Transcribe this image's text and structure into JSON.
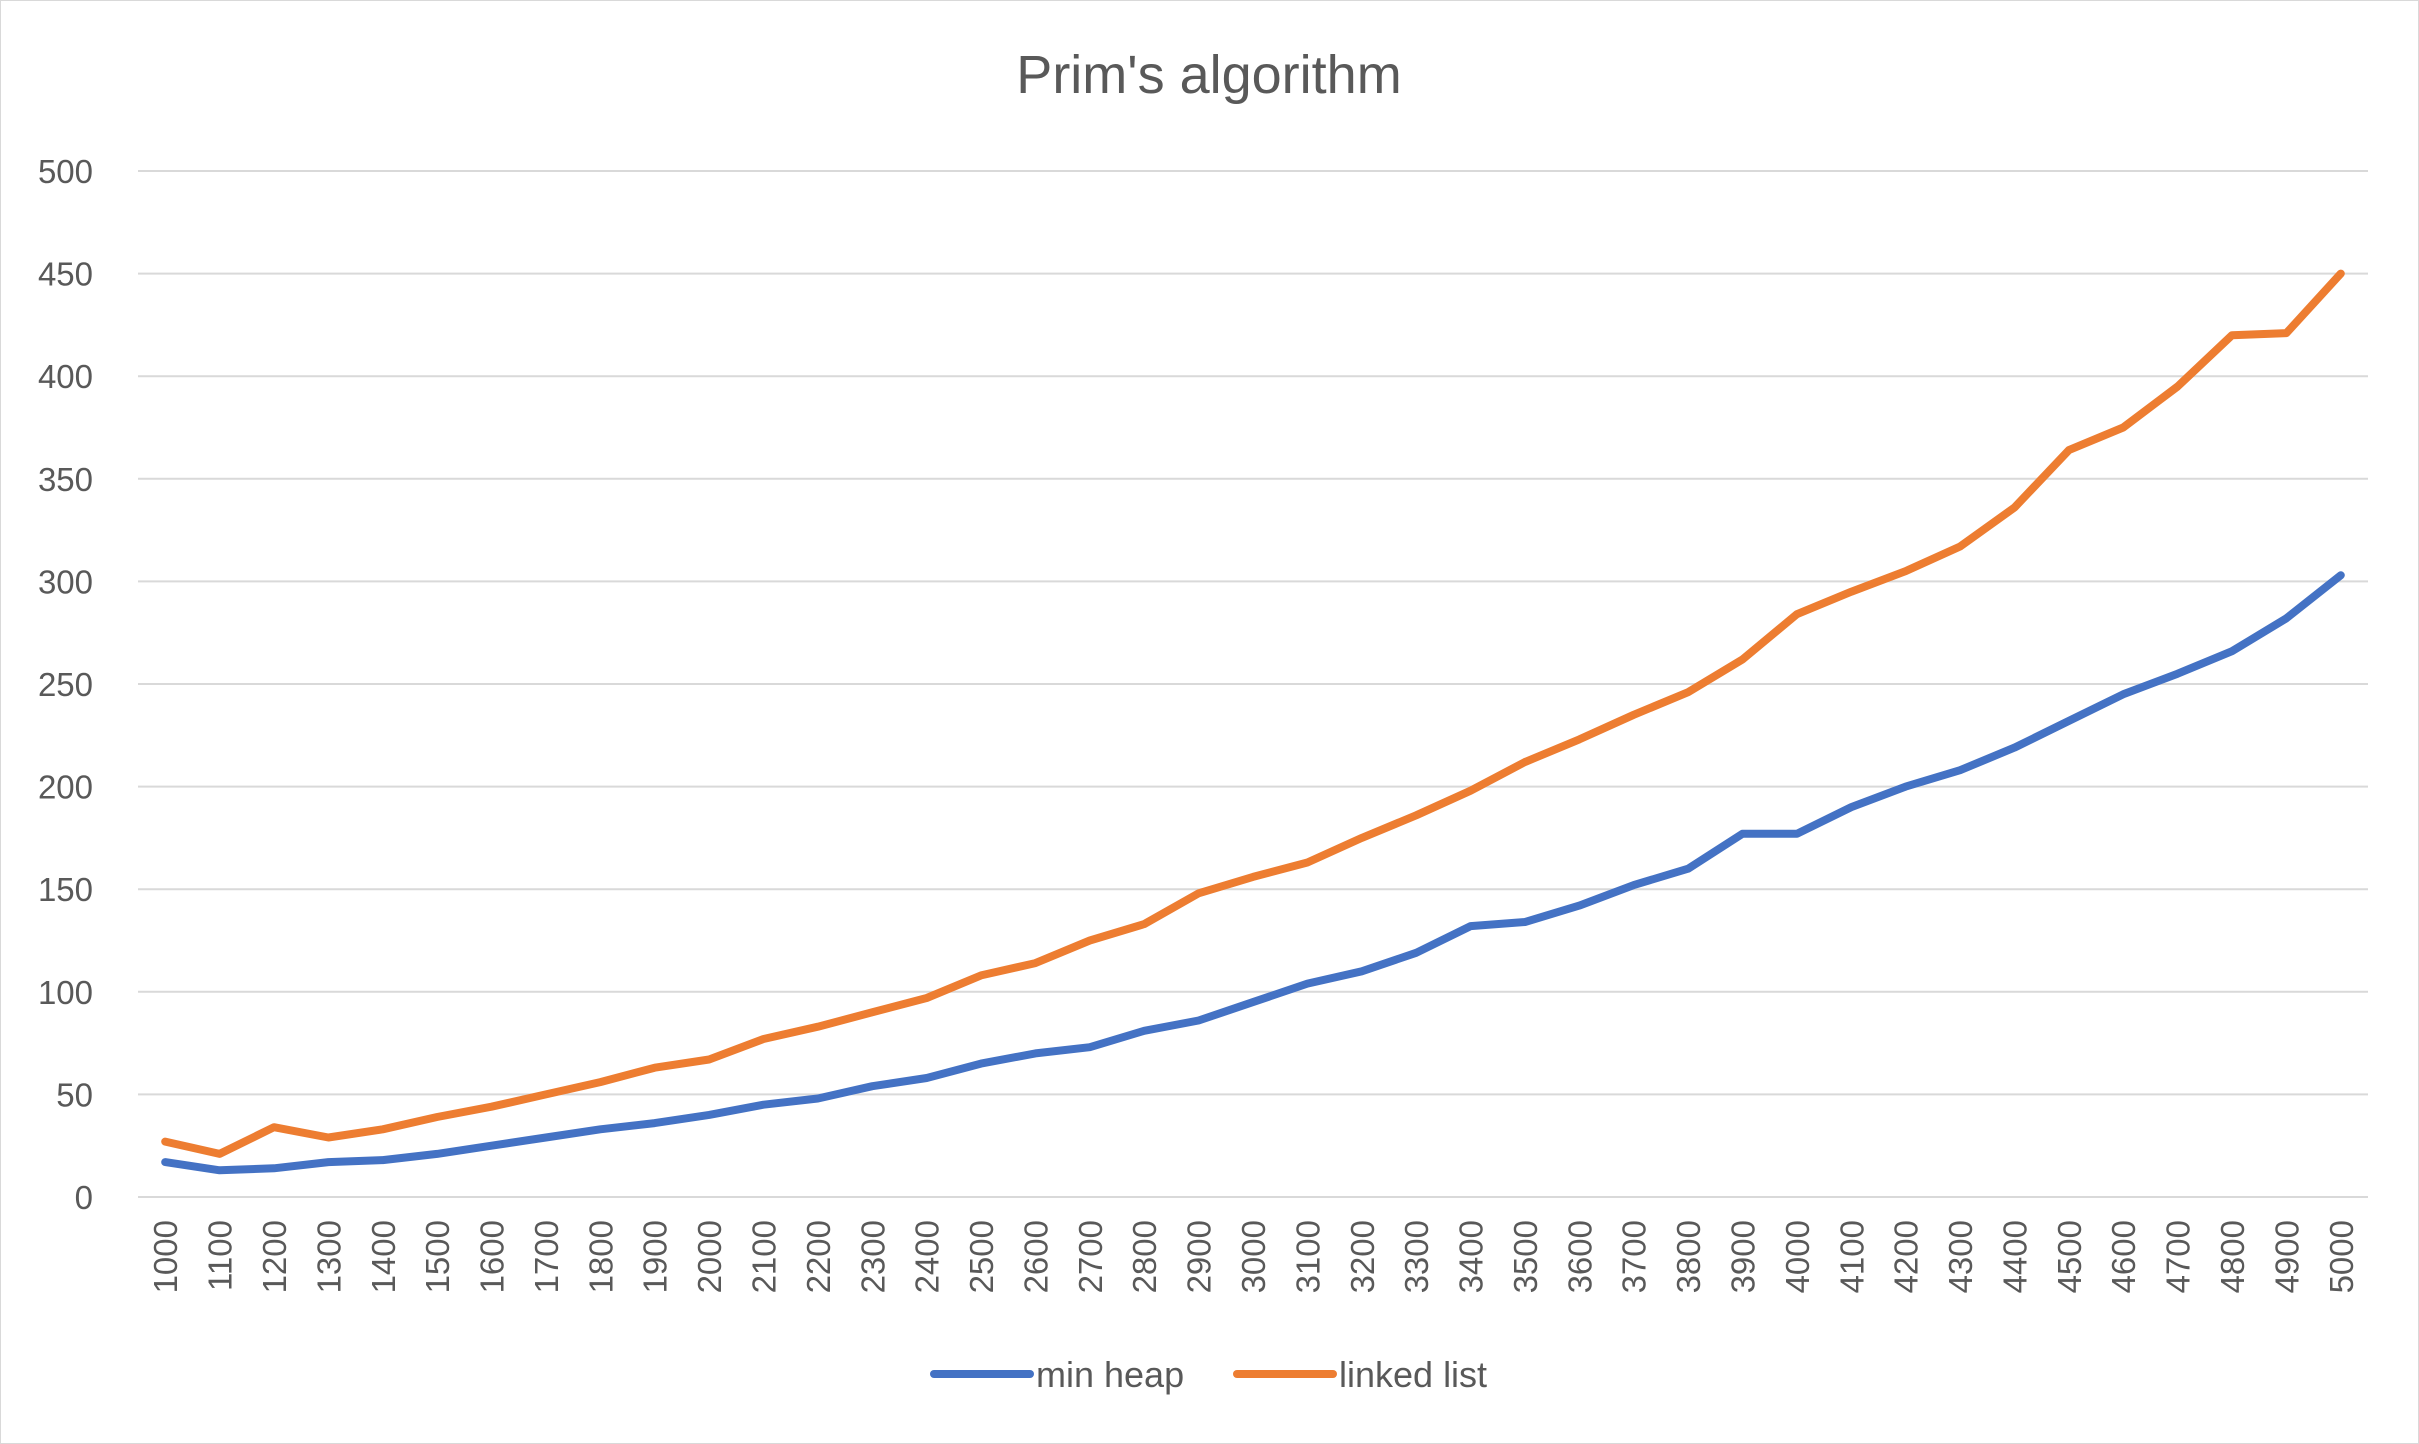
{
  "chart_data": {
    "type": "line",
    "title": "Prim's algorithm",
    "xlabel": "",
    "ylabel": "",
    "ylim": [
      0,
      500
    ],
    "yticks": [
      0,
      50,
      100,
      150,
      200,
      250,
      300,
      350,
      400,
      450,
      500
    ],
    "grid": true,
    "legend_position": "bottom",
    "categories": [
      1000,
      1100,
      1200,
      1300,
      1400,
      1500,
      1600,
      1700,
      1800,
      1900,
      2000,
      2100,
      2200,
      2300,
      2400,
      2500,
      2600,
      2700,
      2800,
      2900,
      3000,
      3100,
      3200,
      3300,
      3400,
      3500,
      3600,
      3700,
      3800,
      3900,
      4000,
      4100,
      4200,
      4300,
      4400,
      4500,
      4600,
      4700,
      4800,
      4900,
      5000
    ],
    "series": [
      {
        "name": "min heap",
        "color": "#4472c4",
        "values": [
          17,
          13,
          14,
          17,
          18,
          21,
          25,
          29,
          33,
          36,
          40,
          45,
          48,
          54,
          58,
          65,
          70,
          73,
          81,
          86,
          95,
          104,
          110,
          119,
          132,
          134,
          142,
          152,
          160,
          177,
          177,
          190,
          200,
          208,
          219,
          232,
          245,
          255,
          266,
          282,
          303
        ]
      },
      {
        "name": "linked list",
        "color": "#ed7d31",
        "values": [
          27,
          21,
          34,
          29,
          33,
          39,
          44,
          50,
          56,
          63,
          67,
          77,
          83,
          90,
          97,
          108,
          114,
          125,
          133,
          148,
          156,
          163,
          175,
          186,
          198,
          212,
          223,
          235,
          246,
          262,
          284,
          295,
          305,
          317,
          336,
          364,
          375,
          395,
          420,
          421,
          450
        ]
      }
    ]
  }
}
